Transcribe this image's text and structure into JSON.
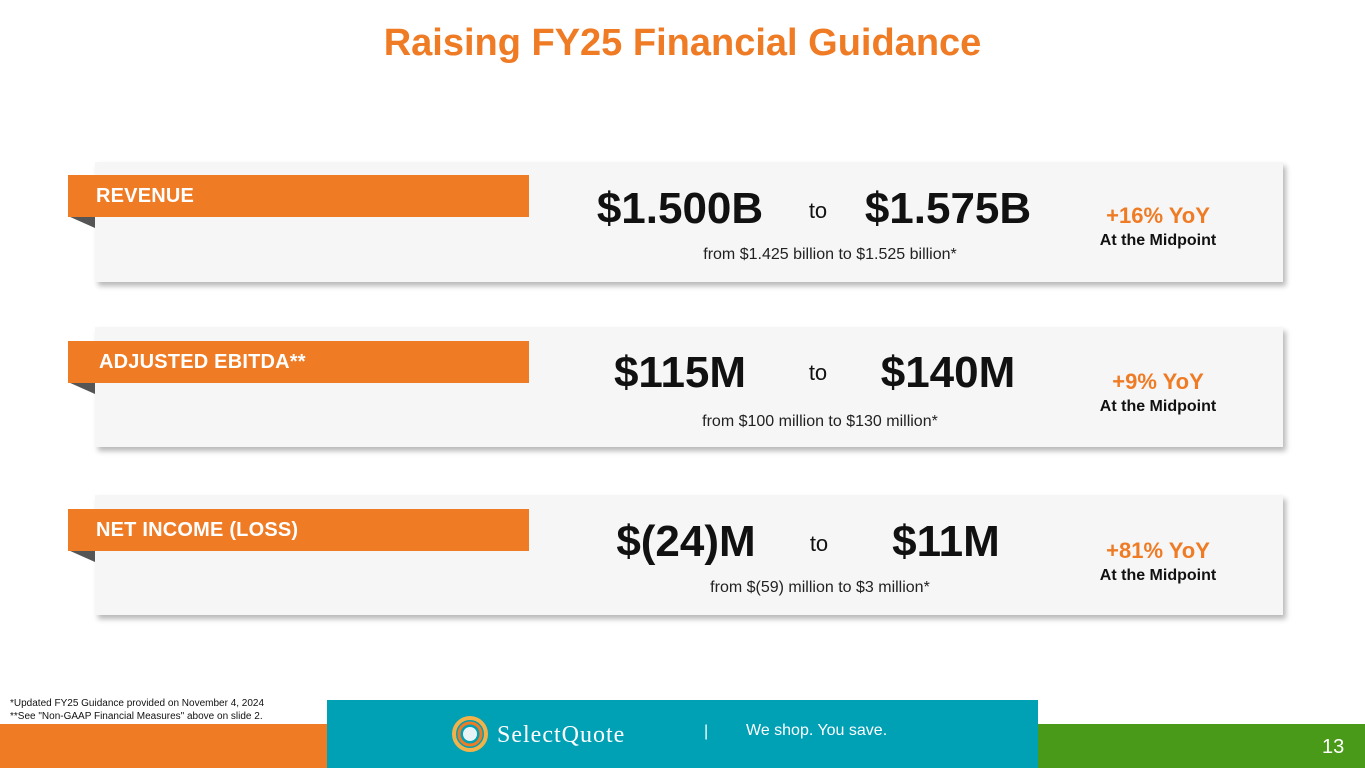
{
  "title": "Raising FY25 Financial Guidance",
  "cards": [
    {
      "label": "REVENUE",
      "low": "$1.500B",
      "to": "to",
      "high": "$1.575B",
      "from_text": "from $1.425 billion to $1.525 billion*",
      "yoy": "+16% YoY",
      "midpoint": "At the Midpoint"
    },
    {
      "label": "ADJUSTED EBITDA**",
      "low": "$115M",
      "to": "to",
      "high": "$140M",
      "from_text": "from $100 million to $130 million*",
      "yoy": "+9% YoY",
      "midpoint": "At the Midpoint"
    },
    {
      "label": "NET INCOME (LOSS)",
      "low": "$(24)M",
      "to": "to",
      "high": "$11M",
      "from_text": "from $(59) million to $3 million*",
      "yoy": "+81% YoY",
      "midpoint": "At the Midpoint"
    }
  ],
  "footnotes": [
    "*Updated FY25 Guidance provided on November 4, 2024",
    "**See \"Non-GAAP Financial Measures\" above on slide 2."
  ],
  "footer": {
    "logo_text": "SelectQuote",
    "separator": "|",
    "tagline": "We shop. You save.",
    "page_number": "13"
  },
  "colors": {
    "accent_orange": "#ef7b25",
    "teal": "#00a0b5",
    "green": "#4a9a1a",
    "card_bg": "#f6f6f6"
  }
}
